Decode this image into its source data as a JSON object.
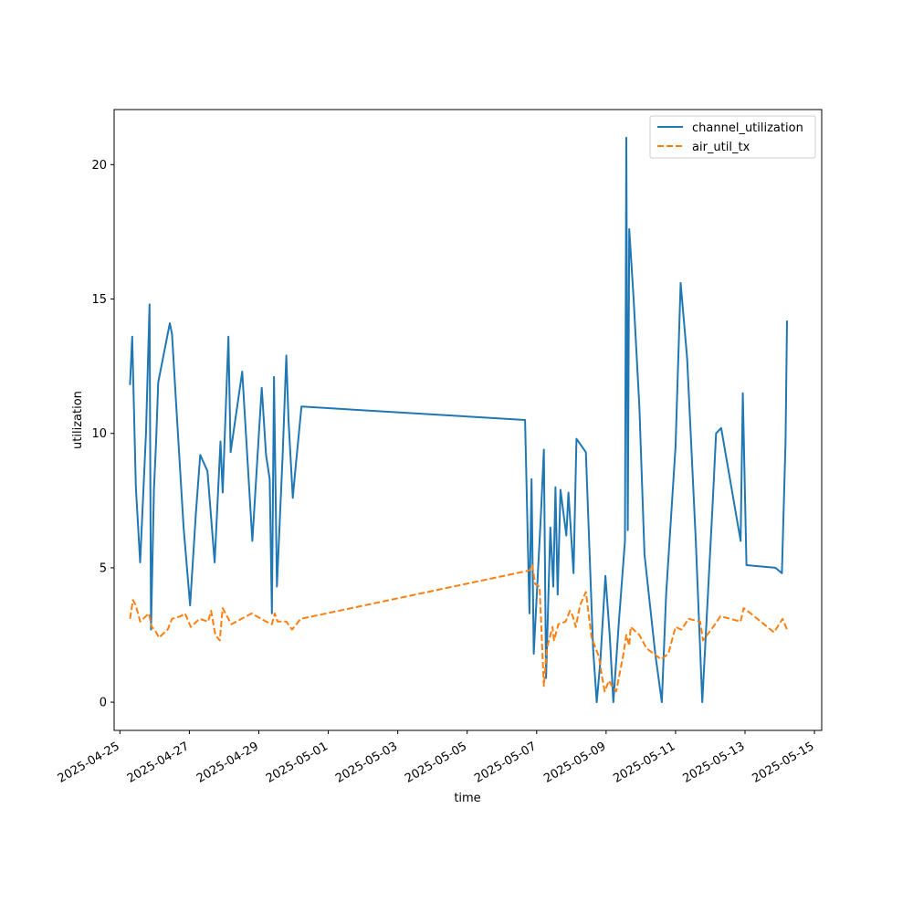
{
  "chart_data": {
    "type": "line",
    "title": "",
    "xlabel": "time",
    "ylabel": "utilization",
    "xlim": [
      "2025-04-24T20:00",
      "2025-05-15T05:00"
    ],
    "ylim": [
      -1.05,
      22.05
    ],
    "x_ticks": [
      "2025-04-25",
      "2025-04-27",
      "2025-04-29",
      "2025-05-01",
      "2025-05-03",
      "2025-05-05",
      "2025-05-07",
      "2025-05-09",
      "2025-05-11",
      "2025-05-13",
      "2025-05-15"
    ],
    "y_ticks": [
      0,
      5,
      10,
      15,
      20
    ],
    "grid": false,
    "legend_position": "upper right",
    "series": [
      {
        "name": "channel_utilization",
        "color": "#1f77b4",
        "dash": "solid",
        "points": [
          [
            "2025-04-25T07:00",
            11.8
          ],
          [
            "2025-04-25T08:30",
            13.6
          ],
          [
            "2025-04-25T11:00",
            8.0
          ],
          [
            "2025-04-25T14:00",
            5.2
          ],
          [
            "2025-04-25T18:00",
            10.0
          ],
          [
            "2025-04-25T20:30",
            14.8
          ],
          [
            "2025-04-25T21:30",
            2.7
          ],
          [
            "2025-04-25T23:30",
            7.9
          ],
          [
            "2025-04-26T01:00",
            9.7
          ],
          [
            "2025-04-26T02:30",
            11.9
          ],
          [
            "2025-04-26T10:30",
            14.1
          ],
          [
            "2025-04-26T12:00",
            13.7
          ],
          [
            "2025-04-26T15:00",
            11.0
          ],
          [
            "2025-04-26T20:00",
            6.5
          ],
          [
            "2025-04-27T00:30",
            3.6
          ],
          [
            "2025-04-27T04:30",
            7.0
          ],
          [
            "2025-04-27T07:30",
            9.2
          ],
          [
            "2025-04-27T12:30",
            8.6
          ],
          [
            "2025-04-27T17:30",
            5.2
          ],
          [
            "2025-04-27T21:30",
            9.7
          ],
          [
            "2025-04-27T23:00",
            7.8
          ],
          [
            "2025-04-28T03:00",
            13.6
          ],
          [
            "2025-04-28T04:30",
            9.3
          ],
          [
            "2025-04-28T12:30",
            12.3
          ],
          [
            "2025-04-28T19:30",
            6.0
          ],
          [
            "2025-04-29T00:30",
            10.4
          ],
          [
            "2025-04-29T02:00",
            11.7
          ],
          [
            "2025-04-29T05:00",
            9.2
          ],
          [
            "2025-04-29T07:30",
            8.3
          ],
          [
            "2025-04-29T09:00",
            3.3
          ],
          [
            "2025-04-29T10:30",
            12.1
          ],
          [
            "2025-04-29T12:30",
            4.3
          ],
          [
            "2025-04-29T16:30",
            9.2
          ],
          [
            "2025-04-29T19:00",
            12.9
          ],
          [
            "2025-04-29T20:30",
            10.5
          ],
          [
            "2025-04-29T23:30",
            7.6
          ],
          [
            "2025-04-30T01:00",
            8.5
          ],
          [
            "2025-04-30T05:30",
            11.0
          ],
          [
            "2025-05-06T16:00",
            10.5
          ],
          [
            "2025-05-06T19:00",
            3.3
          ],
          [
            "2025-05-06T20:30",
            8.3
          ],
          [
            "2025-05-06T22:00",
            1.8
          ],
          [
            "2025-05-07T03:00",
            7.0
          ],
          [
            "2025-05-07T05:00",
            9.4
          ],
          [
            "2025-05-07T06:30",
            0.9
          ],
          [
            "2025-05-07T09:30",
            6.5
          ],
          [
            "2025-05-07T11:30",
            4.3
          ],
          [
            "2025-05-07T13:00",
            8.0
          ],
          [
            "2025-05-07T14:30",
            4.0
          ],
          [
            "2025-05-07T16:30",
            7.9
          ],
          [
            "2025-05-07T20:30",
            6.2
          ],
          [
            "2025-05-07T22:00",
            7.8
          ],
          [
            "2025-05-08T01:30",
            4.8
          ],
          [
            "2025-05-08T03:30",
            9.8
          ],
          [
            "2025-05-08T10:00",
            9.3
          ],
          [
            "2025-05-08T15:00",
            2.0
          ],
          [
            "2025-05-08T17:30",
            0.0
          ],
          [
            "2025-05-08T20:00",
            1.5
          ],
          [
            "2025-05-08T23:30",
            4.7
          ],
          [
            "2025-05-09T02:30",
            2.5
          ],
          [
            "2025-05-09T05:00",
            0.0
          ],
          [
            "2025-05-09T09:00",
            3.1
          ],
          [
            "2025-05-09T13:00",
            6.0
          ],
          [
            "2025-05-09T14:00",
            21.0
          ],
          [
            "2025-05-09T15:00",
            6.4
          ],
          [
            "2025-05-09T16:00",
            17.6
          ],
          [
            "2025-05-09T19:00",
            15.0
          ],
          [
            "2025-05-09T23:00",
            11.0
          ],
          [
            "2025-05-10T02:30",
            5.5
          ],
          [
            "2025-05-10T10:00",
            1.8
          ],
          [
            "2025-05-10T14:30",
            0.0
          ],
          [
            "2025-05-10T17:30",
            4.0
          ],
          [
            "2025-05-11T00:00",
            9.5
          ],
          [
            "2025-05-11T03:30",
            15.6
          ],
          [
            "2025-05-11T08:00",
            12.8
          ],
          [
            "2025-05-11T14:00",
            6.0
          ],
          [
            "2025-05-11T18:30",
            0.0
          ],
          [
            "2025-05-12T01:30",
            7.2
          ],
          [
            "2025-05-12T04:00",
            10.0
          ],
          [
            "2025-05-12T07:30",
            10.2
          ],
          [
            "2025-05-12T21:00",
            6.0
          ],
          [
            "2025-05-12T22:30",
            11.5
          ],
          [
            "2025-05-13T01:00",
            5.1
          ],
          [
            "2025-05-13T21:00",
            5.0
          ],
          [
            "2025-05-14T01:30",
            4.8
          ],
          [
            "2025-05-14T04:00",
            9.7
          ],
          [
            "2025-05-14T05:00",
            14.2
          ]
        ]
      },
      {
        "name": "air_util_tx",
        "color": "#ff7f0e",
        "dash": "dashed",
        "points": [
          [
            "2025-04-25T07:00",
            3.1
          ],
          [
            "2025-04-25T09:00",
            3.8
          ],
          [
            "2025-04-25T11:00",
            3.6
          ],
          [
            "2025-04-25T14:00",
            3.0
          ],
          [
            "2025-04-25T20:00",
            3.3
          ],
          [
            "2025-04-25T22:00",
            2.8
          ],
          [
            "2025-04-26T00:00",
            2.7
          ],
          [
            "2025-04-26T03:00",
            2.4
          ],
          [
            "2025-04-26T09:00",
            2.7
          ],
          [
            "2025-04-26T12:00",
            3.1
          ],
          [
            "2025-04-26T18:00",
            3.2
          ],
          [
            "2025-04-26T21:00",
            3.3
          ],
          [
            "2025-04-27T01:00",
            2.8
          ],
          [
            "2025-04-27T07:00",
            3.1
          ],
          [
            "2025-04-27T13:00",
            3.0
          ],
          [
            "2025-04-27T15:00",
            3.4
          ],
          [
            "2025-04-27T18:00",
            2.5
          ],
          [
            "2025-04-27T21:00",
            2.3
          ],
          [
            "2025-04-27T23:00",
            3.5
          ],
          [
            "2025-04-28T01:00",
            3.3
          ],
          [
            "2025-04-28T05:00",
            2.9
          ],
          [
            "2025-04-28T12:00",
            3.1
          ],
          [
            "2025-04-28T19:00",
            3.3
          ],
          [
            "2025-04-29T05:00",
            3.0
          ],
          [
            "2025-04-29T09:00",
            2.9
          ],
          [
            "2025-04-29T11:00",
            3.3
          ],
          [
            "2025-04-29T13:00",
            3.0
          ],
          [
            "2025-04-29T19:00",
            3.0
          ],
          [
            "2025-04-29T23:00",
            2.7
          ],
          [
            "2025-04-30T05:00",
            3.1
          ],
          [
            "2025-05-06T19:00",
            4.9
          ],
          [
            "2025-05-06T21:00",
            5.1
          ],
          [
            "2025-05-06T23:00",
            4.4
          ],
          [
            "2025-05-07T02:00",
            4.3
          ],
          [
            "2025-05-07T05:00",
            0.6
          ],
          [
            "2025-05-07T07:00",
            2.0
          ],
          [
            "2025-05-07T11:00",
            2.8
          ],
          [
            "2025-05-07T12:00",
            2.3
          ],
          [
            "2025-05-07T15:00",
            2.9
          ],
          [
            "2025-05-07T20:00",
            3.0
          ],
          [
            "2025-05-07T23:00",
            3.4
          ],
          [
            "2025-05-08T01:00",
            3.2
          ],
          [
            "2025-05-08T03:00",
            2.8
          ],
          [
            "2025-05-08T06:00",
            3.6
          ],
          [
            "2025-05-08T10:00",
            4.1
          ],
          [
            "2025-05-08T14:00",
            2.4
          ],
          [
            "2025-05-08T19:00",
            1.7
          ],
          [
            "2025-05-08T21:00",
            1.0
          ],
          [
            "2025-05-08T23:00",
            0.4
          ],
          [
            "2025-05-09T02:00",
            0.8
          ],
          [
            "2025-05-09T04:00",
            0.6
          ],
          [
            "2025-05-09T07:00",
            0.4
          ],
          [
            "2025-05-09T12:00",
            1.8
          ],
          [
            "2025-05-09T14:00",
            2.5
          ],
          [
            "2025-05-09T16:00",
            2.1
          ],
          [
            "2025-05-09T17:00",
            2.8
          ],
          [
            "2025-05-09T23:00",
            2.5
          ],
          [
            "2025-05-10T04:00",
            2.0
          ],
          [
            "2025-05-10T14:00",
            1.6
          ],
          [
            "2025-05-10T19:00",
            1.8
          ],
          [
            "2025-05-11T00:00",
            2.8
          ],
          [
            "2025-05-11T04:00",
            2.7
          ],
          [
            "2025-05-11T09:00",
            3.1
          ],
          [
            "2025-05-11T17:00",
            3.0
          ],
          [
            "2025-05-11T19:00",
            2.3
          ],
          [
            "2025-05-12T02:00",
            2.8
          ],
          [
            "2025-05-12T07:00",
            3.2
          ],
          [
            "2025-05-12T21:00",
            3.0
          ],
          [
            "2025-05-12T23:00",
            3.5
          ],
          [
            "2025-05-13T04:00",
            3.3
          ],
          [
            "2025-05-13T20:00",
            2.6
          ],
          [
            "2025-05-14T02:00",
            3.1
          ],
          [
            "2025-05-14T05:00",
            2.7
          ]
        ]
      }
    ]
  }
}
